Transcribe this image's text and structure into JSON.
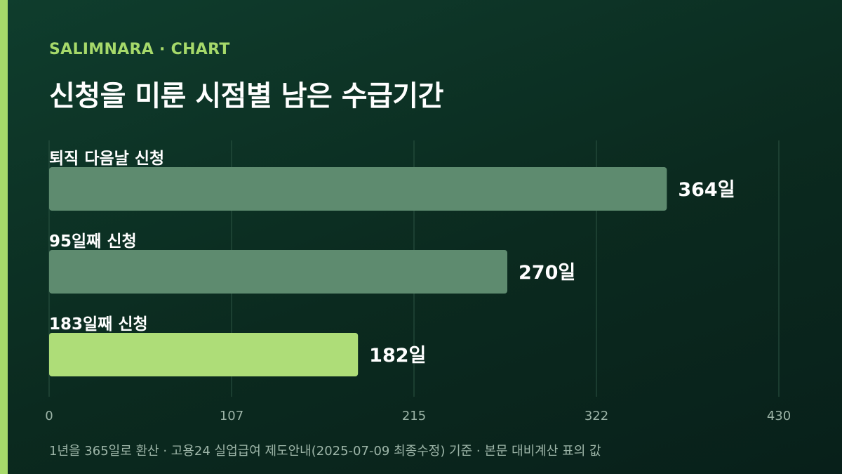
{
  "header": {
    "brand": "SALIMNARA · CHART",
    "title": "신청을 미룬 시점별 남은 수급기간"
  },
  "footnote": "1년을 365일로 환산 · 고용24 실업급여 제도안내(2025-07-09 최종수정) 기준 · 본문 대비계산 표의 값",
  "colors": {
    "accent": "#a6d96a",
    "bar_default": "#5e8b6f",
    "bar_highlight": "#aedd78",
    "grid": "#2c5443",
    "tick": "#9db5a8"
  },
  "chart_data": {
    "type": "bar",
    "orientation": "horizontal",
    "categories": [
      "퇴직 다음날 신청",
      "95일째 신청",
      "183일째 신청"
    ],
    "values": [
      364,
      270,
      182
    ],
    "value_labels": [
      "364일",
      "270일",
      "182일"
    ],
    "highlight_index": 2,
    "xlim": [
      0,
      430
    ],
    "x_ticks": [
      "0",
      "107",
      "215",
      "322",
      "430"
    ],
    "x_tick_values": [
      0,
      107.5,
      215,
      322.5,
      430
    ],
    "grid": true
  }
}
